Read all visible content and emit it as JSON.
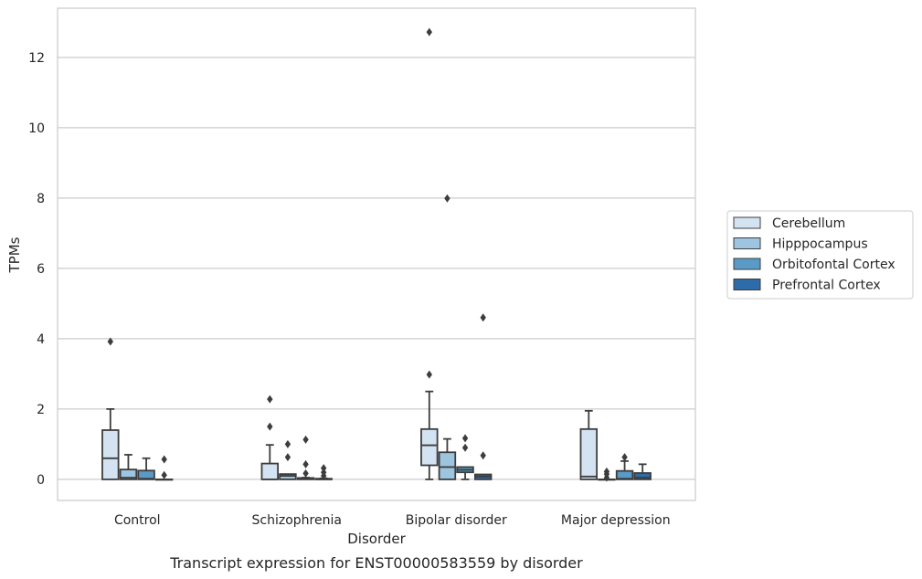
{
  "chart_data": {
    "type": "box",
    "xlabel": "Disorder",
    "ylabel": "TPMs",
    "caption": "Transcript expression for ENST00000583559 by disorder",
    "ylim": [
      -0.6,
      13.4
    ],
    "yticks": [
      0,
      2,
      4,
      6,
      8,
      10,
      12
    ],
    "grid": "horizontal",
    "legend_position": "right",
    "categories": [
      "Control",
      "Schizophrenia",
      "Bipolar disorder",
      "Major depression"
    ],
    "series": [
      {
        "name": "Cerebellum",
        "color": "#d4e3f2",
        "boxes": [
          {
            "whislo": 0,
            "q1": 0,
            "med": 0.6,
            "q3": 1.4,
            "whishi": 2.0,
            "fliers": [
              3.92
            ]
          },
          {
            "whislo": 0,
            "q1": 0,
            "med": 0,
            "q3": 0.45,
            "whishi": 0.98,
            "fliers": [
              1.5,
              2.28
            ]
          },
          {
            "whislo": 0,
            "q1": 0.4,
            "med": 0.97,
            "q3": 1.43,
            "whishi": 2.5,
            "fliers": [
              2.98,
              12.72
            ]
          },
          {
            "whislo": 0,
            "q1": 0,
            "med": 0.08,
            "q3": 1.43,
            "whishi": 1.95,
            "fliers": []
          }
        ]
      },
      {
        "name": "Hipppocampus",
        "color": "#9ec5df",
        "boxes": [
          {
            "whislo": 0,
            "q1": 0,
            "med": 0.05,
            "q3": 0.28,
            "whishi": 0.7,
            "fliers": []
          },
          {
            "whislo": 0,
            "q1": 0,
            "med": 0.1,
            "q3": 0.15,
            "whishi": 0.15,
            "fliers": [
              0.63,
              1.0
            ]
          },
          {
            "whislo": 0,
            "q1": 0,
            "med": 0.35,
            "q3": 0.77,
            "whishi": 1.15,
            "fliers": [
              7.99
            ]
          },
          {
            "whislo": 0,
            "q1": 0,
            "med": 0,
            "q3": 0,
            "whishi": 0,
            "fliers": [
              0.05,
              0.15,
              0.22
            ]
          }
        ]
      },
      {
        "name": "Orbitofontal Cortex",
        "color": "#5a9ac6",
        "boxes": [
          {
            "whislo": 0,
            "q1": 0,
            "med": 0.02,
            "q3": 0.25,
            "whishi": 0.6,
            "fliers": []
          },
          {
            "whislo": 0,
            "q1": 0,
            "med": 0.02,
            "q3": 0.04,
            "whishi": 0.05,
            "fliers": [
              0.17,
              0.43,
              1.13
            ]
          },
          {
            "whislo": 0,
            "q1": 0.2,
            "med": 0.27,
            "q3": 0.35,
            "whishi": 0.35,
            "fliers": [
              0.9,
              1.17
            ]
          },
          {
            "whislo": 0,
            "q1": 0,
            "med": 0.02,
            "q3": 0.24,
            "whishi": 0.52,
            "fliers": [
              0.63
            ]
          }
        ]
      },
      {
        "name": "Prefrontal Cortex",
        "color": "#2d6ba9",
        "boxes": [
          {
            "whislo": 0,
            "q1": 0,
            "med": 0,
            "q3": 0,
            "whishi": 0,
            "fliers": [
              0.12,
              0.57
            ]
          },
          {
            "whislo": 0,
            "q1": 0,
            "med": 0,
            "q3": 0.02,
            "whishi": 0.03,
            "fliers": [
              0.1,
              0.2,
              0.32
            ]
          },
          {
            "whislo": 0,
            "q1": 0,
            "med": 0.08,
            "q3": 0.14,
            "whishi": 0.14,
            "fliers": [
              0.68,
              4.6
            ]
          },
          {
            "whislo": 0,
            "q1": 0,
            "med": 0.05,
            "q3": 0.18,
            "whishi": 0.43,
            "fliers": []
          }
        ]
      }
    ]
  }
}
